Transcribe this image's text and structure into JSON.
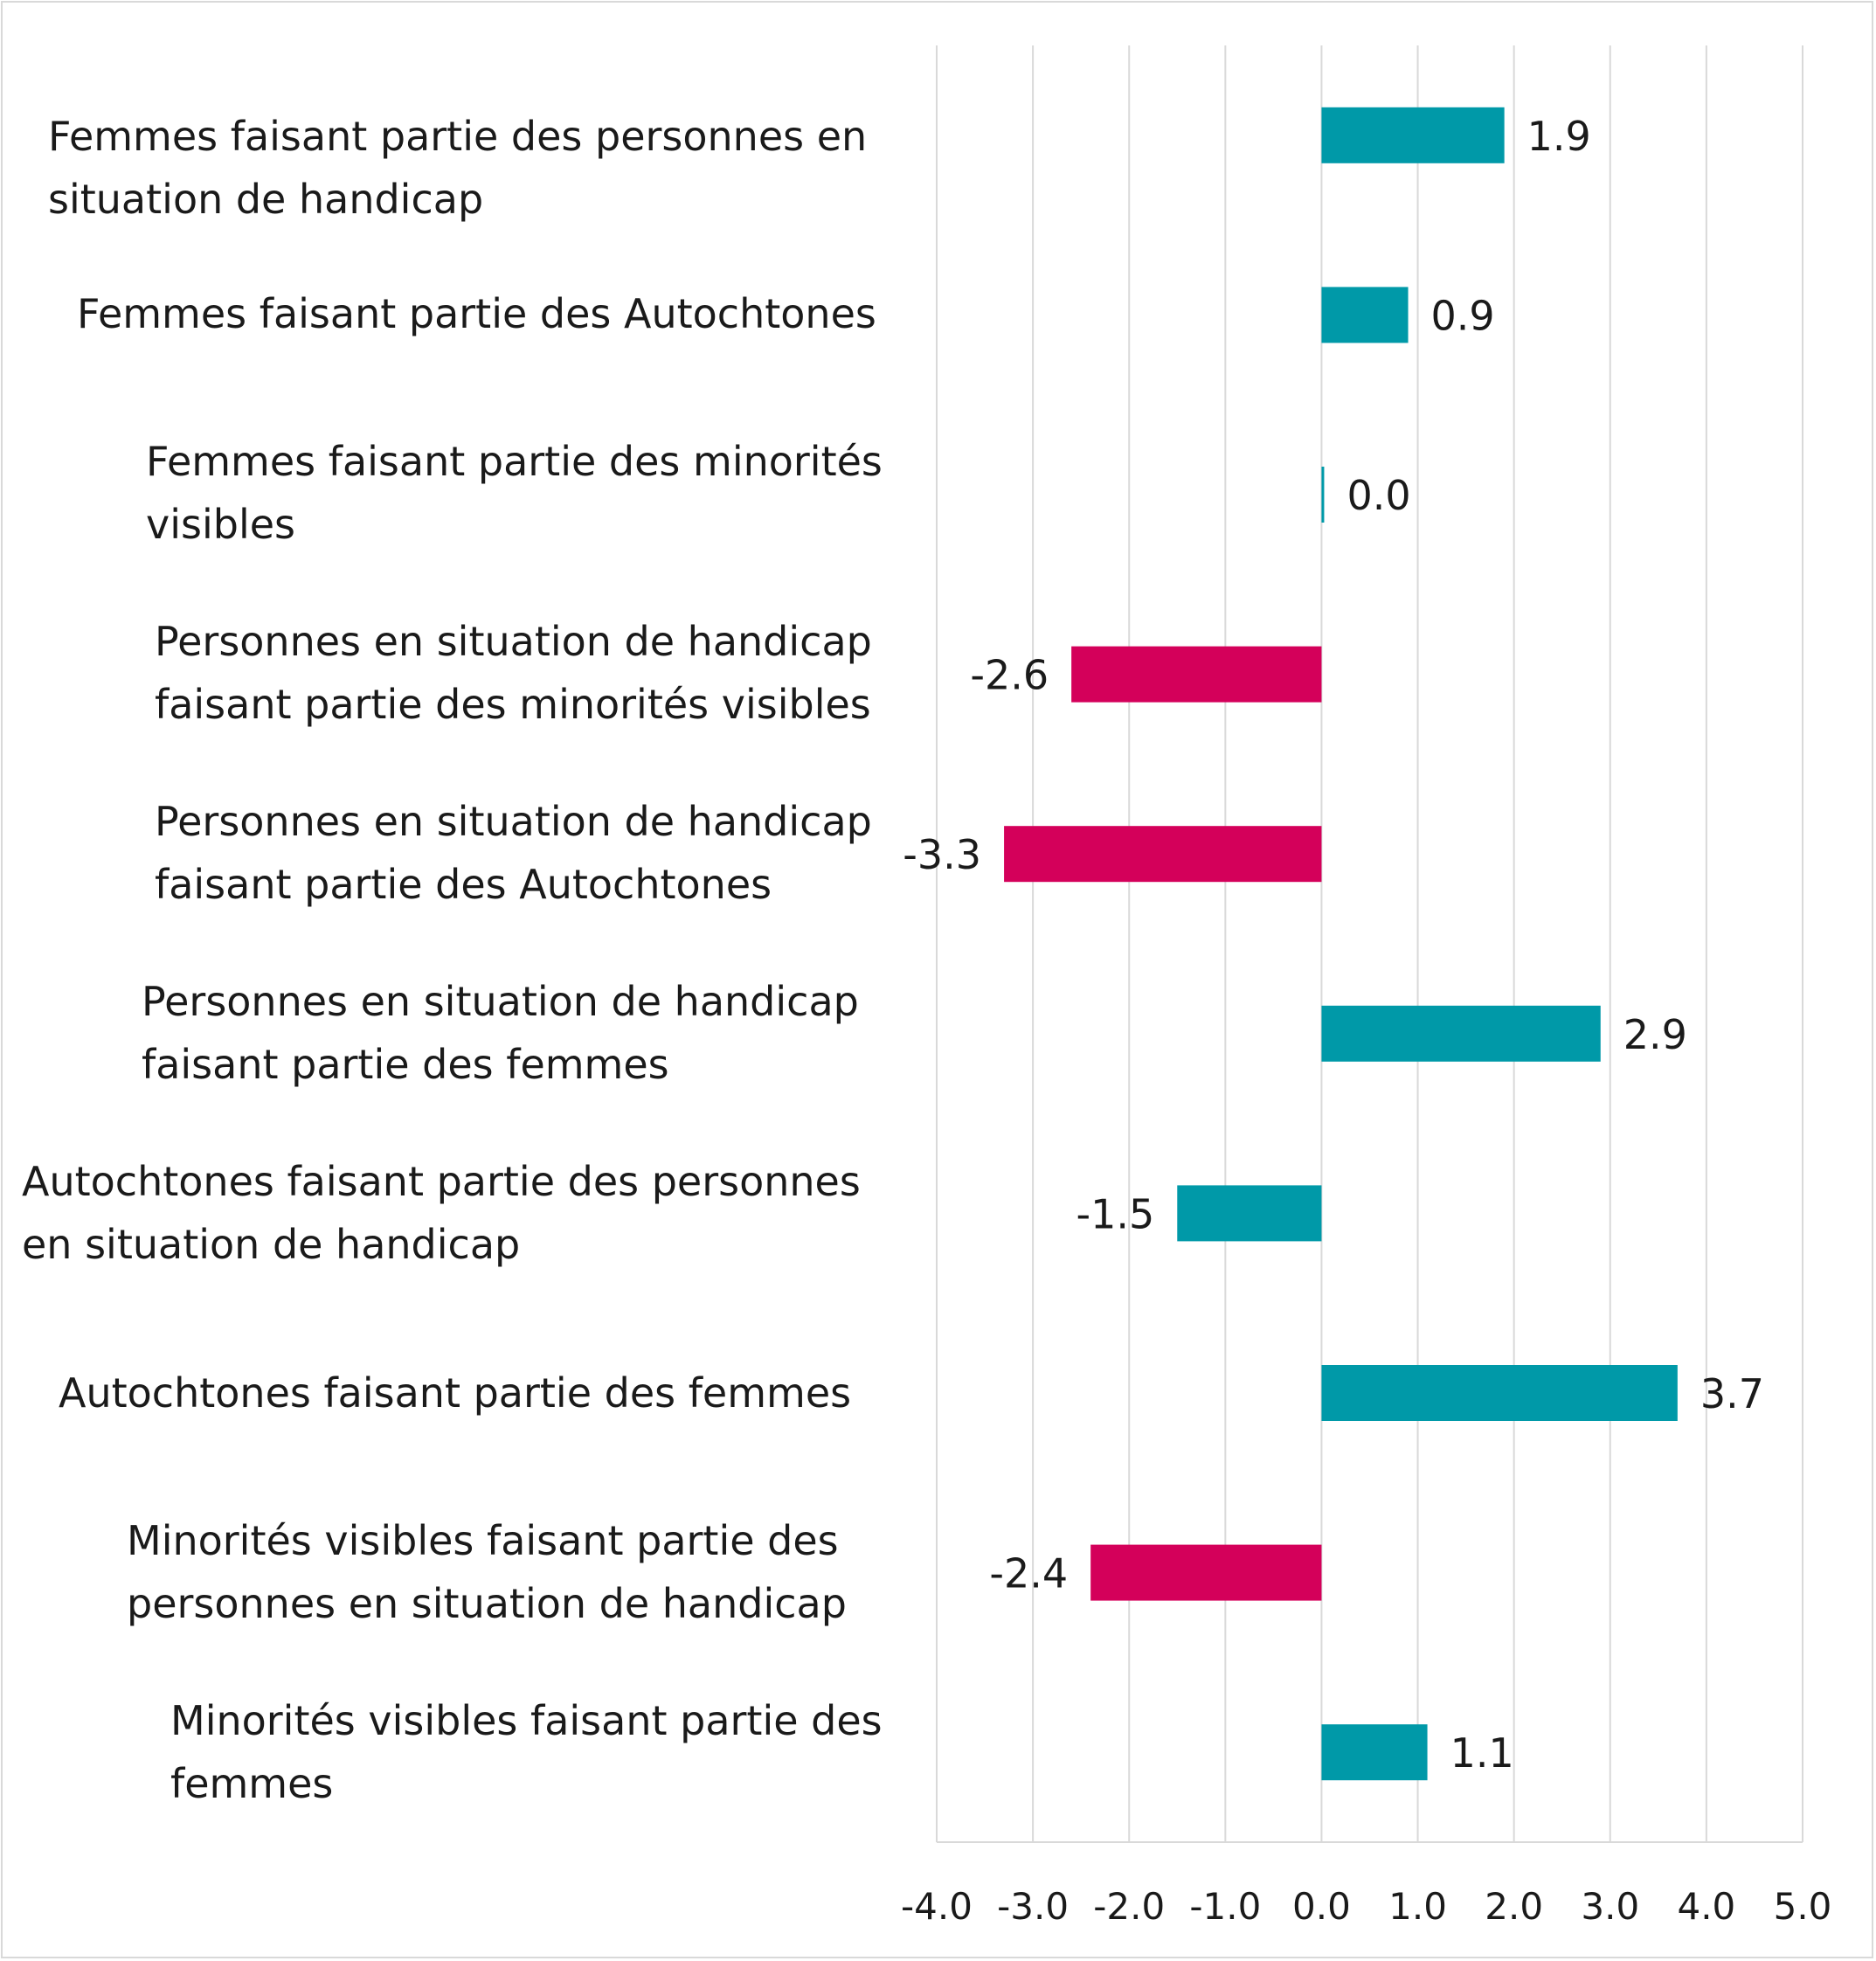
{
  "chart_data": {
    "type": "bar",
    "orientation": "horizontal",
    "title": "",
    "xlabel": "",
    "ylabel": "",
    "xlim": [
      -4.0,
      5.0
    ],
    "x_ticks": [
      "-4.0",
      "-3.0",
      "-2.0",
      "-1.0",
      "0.0",
      "1.0",
      "2.0",
      "3.0",
      "4.0",
      "5.0"
    ],
    "grid": "vertical",
    "legend": "none",
    "colors": {
      "teal": "#0099a8",
      "magenta": "#d4005a"
    },
    "categories": [
      "Femmes faisant partie des personnes en situation de handicap",
      "Femmes faisant partie des Autochtones",
      "Femmes faisant partie des minorités visibles",
      "Personnes en situation de handicap faisant partie des minorités visibles",
      "Personnes en situation de handicap faisant partie des Autochtones",
      "Personnes en situation de handicap faisant partie des femmes",
      "Autochtones faisant partie des personnes en situation de handicap",
      "Autochtones faisant partie des femmes",
      "Minorités visibles faisant partie des personnes en situation de handicap",
      "Minorités visibles faisant partie des femmes"
    ],
    "values": [
      1.9,
      0.9,
      0.0,
      -2.6,
      -3.3,
      2.9,
      -1.5,
      3.7,
      -2.4,
      1.1
    ],
    "value_labels": [
      "1.9",
      "0.9",
      "0.0",
      "-2.6",
      "-3.3",
      "2.9",
      "-1.5",
      "3.7",
      "-2.4",
      "1.1"
    ],
    "bar_colors": [
      "teal",
      "teal",
      "teal",
      "magenta",
      "magenta",
      "teal",
      "teal",
      "teal",
      "magenta",
      "teal"
    ]
  }
}
